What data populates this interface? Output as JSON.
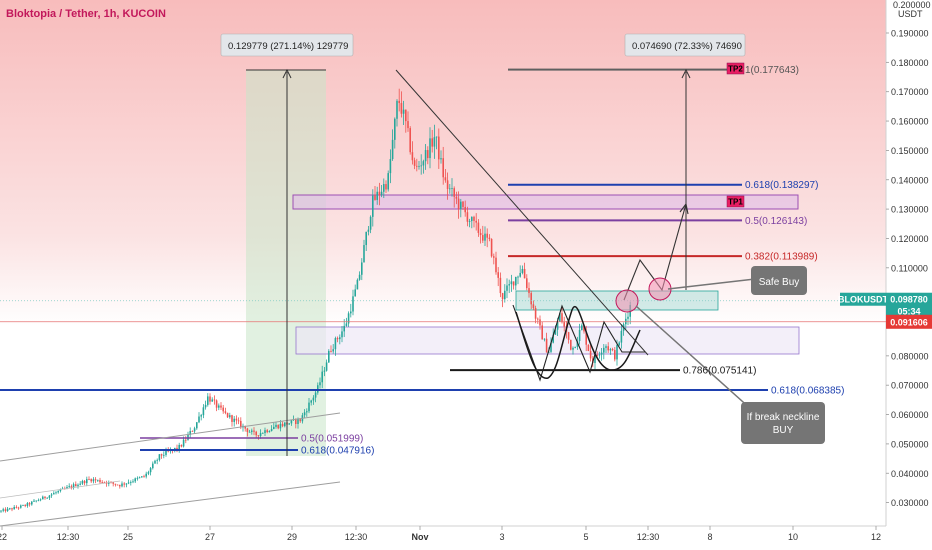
{
  "chart_data": {
    "type": "candlestick",
    "title": "Bloktopia / Tether, 1h, KUCOIN",
    "y_unit_label": "USDT",
    "y_top_label": "0.200000",
    "yticks": [
      "0.190000",
      "0.180000",
      "0.170000",
      "0.160000",
      "0.150000",
      "0.140000",
      "0.130000",
      "0.120000",
      "0.110000",
      "0.100000",
      "0.080000",
      "0.070000",
      "0.060000",
      "0.050000",
      "0.040000",
      "0.030000"
    ],
    "ylim": [
      0.027,
      0.2
    ],
    "xticks": [
      "22",
      "12:30",
      "25",
      "27",
      "29",
      "12:30",
      "Nov",
      "3",
      "5",
      "12:30",
      "8",
      "10",
      "12"
    ],
    "price_tag": {
      "symbol": "BLOKUSDT",
      "price": "0.098780",
      "countdown": "05:34",
      "color": "#26a69a"
    },
    "ref_tag": {
      "price": "0.091606",
      "color": "#e53935"
    },
    "measures": [
      {
        "label": "0.129779 (271.14%) 129779"
      },
      {
        "label": "0.074690 (72.33%) 74690"
      }
    ],
    "fib_levels": [
      {
        "label": "1(0.177643)",
        "value": 0.177643,
        "color": "#555555"
      },
      {
        "label": "0.618(0.138297)",
        "value": 0.138297,
        "color": "#1e40af"
      },
      {
        "label": "0.5(0.126143)",
        "value": 0.126143,
        "color": "#7b3fa0"
      },
      {
        "label": "0.382(0.113989)",
        "value": 0.113989,
        "color": "#c62828"
      },
      {
        "label": "0.786(0.075141)",
        "value": 0.075141,
        "color": "#1a1a1a"
      },
      {
        "label": "0.618(0.068385)",
        "value": 0.068385,
        "color": "#1e40af"
      },
      {
        "label": "0.5(0.051999)",
        "value": 0.051999,
        "color": "#7b3fa0"
      },
      {
        "label": "0.618(0.047916)",
        "value": 0.047916,
        "color": "#1e40af"
      }
    ],
    "targets": [
      {
        "label": "TP2"
      },
      {
        "label": "TP1"
      }
    ],
    "annotations": [
      {
        "label": "Safe Buy"
      },
      {
        "label": "If break neckline BUY"
      }
    ],
    "colors": {
      "up": "#26a69a",
      "down": "#ef5350"
    }
  }
}
